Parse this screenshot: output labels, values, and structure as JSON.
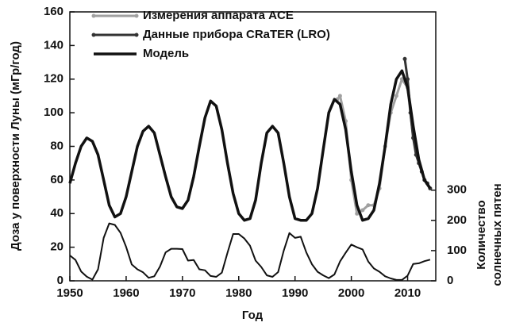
{
  "chart_data": {
    "type": "line",
    "xlabel": "Год",
    "ylabel": "Доза у поверхности Луны (мГр/год)",
    "y2label": [
      "Количество",
      "солнечных пятен"
    ],
    "xlim": [
      1950,
      2015
    ],
    "xticks": [
      1950,
      1960,
      1970,
      1980,
      1990,
      2000,
      2010
    ],
    "ylim": [
      0,
      160
    ],
    "yticks": [
      0,
      20,
      40,
      60,
      80,
      100,
      120,
      140,
      160
    ],
    "y2lim": [
      0,
      890
    ],
    "y2ticks": [
      0,
      100,
      200,
      300
    ],
    "legend": "upper left",
    "series": [
      {
        "name": "Измерения аппарата ACE",
        "color": "#a0a0a0",
        "marker": true,
        "width": 3,
        "x": [
          1997.5,
          1998,
          1999,
          2000,
          2001,
          2002,
          2003,
          2004,
          2005,
          2006,
          2007,
          2008,
          2009,
          2010,
          2011,
          2012,
          2013,
          2014
        ],
        "values": [
          108,
          110,
          95,
          60,
          40,
          42,
          45,
          45,
          55,
          80,
          100,
          110,
          120,
          115,
          85,
          70,
          60,
          55
        ]
      },
      {
        "name": "Данные прибора CRaTER (LRO)",
        "color": "#333333",
        "marker": true,
        "width": 3,
        "x": [
          2009.5,
          2010,
          2010.5,
          2011,
          2011.5,
          2012,
          2012.5,
          2013,
          2013.5,
          2014
        ],
        "values": [
          132,
          120,
          100,
          85,
          75,
          70,
          65,
          60,
          58,
          55
        ]
      },
      {
        "name": "Модель",
        "color": "#111111",
        "marker": false,
        "width": 3.5,
        "x": [
          1950,
          1951,
          1952,
          1953,
          1954,
          1955,
          1956,
          1957,
          1958,
          1959,
          1960,
          1961,
          1962,
          1963,
          1964,
          1965,
          1966,
          1967,
          1968,
          1969,
          1970,
          1971,
          1972,
          1973,
          1974,
          1975,
          1976,
          1977,
          1978,
          1979,
          1980,
          1981,
          1982,
          1983,
          1984,
          1985,
          1986,
          1987,
          1988,
          1989,
          1990,
          1991,
          1992,
          1993,
          1994,
          1995,
          1996,
          1997,
          1998,
          1999,
          2000,
          2001,
          2002,
          2003,
          2004,
          2005,
          2006,
          2007,
          2008,
          2009,
          2010,
          2011,
          2012,
          2013,
          2014
        ],
        "values": [
          58,
          70,
          80,
          85,
          83,
          75,
          60,
          45,
          38,
          40,
          50,
          65,
          80,
          89,
          92,
          88,
          75,
          62,
          50,
          44,
          43,
          48,
          62,
          80,
          97,
          107,
          104,
          90,
          70,
          52,
          40,
          36,
          37,
          48,
          70,
          88,
          92,
          88,
          70,
          50,
          37,
          36,
          36,
          40,
          55,
          78,
          100,
          108,
          105,
          90,
          65,
          45,
          36,
          37,
          42,
          58,
          80,
          105,
          120,
          125,
          115,
          92,
          72,
          60,
          55
        ]
      },
      {
        "color": "#111111",
        "marker": false,
        "width": 2,
        "axis": "y2",
        "x": [
          1950,
          1951,
          1952,
          1953,
          1954,
          1955,
          1956,
          1957,
          1958,
          1959,
          1960,
          1961,
          1962,
          1963,
          1964,
          1965,
          1966,
          1967,
          1968,
          1969,
          1970,
          1971,
          1972,
          1973,
          1974,
          1975,
          1976,
          1977,
          1978,
          1979,
          1980,
          1981,
          1982,
          1983,
          1984,
          1985,
          1986,
          1987,
          1988,
          1989,
          1990,
          1991,
          1992,
          1993,
          1994,
          1995,
          1996,
          1997,
          1998,
          1999,
          2000,
          2001,
          2002,
          2003,
          2004,
          2005,
          2006,
          2007,
          2008,
          2009,
          2010,
          2011,
          2012,
          2013,
          2014
        ],
        "values": [
          84,
          69,
          31,
          14,
          4,
          38,
          142,
          190,
          185,
          159,
          112,
          54,
          38,
          28,
          10,
          15,
          47,
          94,
          106,
          106,
          105,
          67,
          69,
          38,
          35,
          16,
          13,
          27,
          93,
          155,
          155,
          140,
          116,
          67,
          46,
          18,
          13,
          29,
          100,
          158,
          142,
          146,
          94,
          55,
          30,
          18,
          9,
          21,
          64,
          93,
          120,
          111,
          104,
          64,
          41,
          30,
          15,
          8,
          3,
          3,
          17,
          56,
          58,
          65,
          70
        ]
      }
    ]
  }
}
